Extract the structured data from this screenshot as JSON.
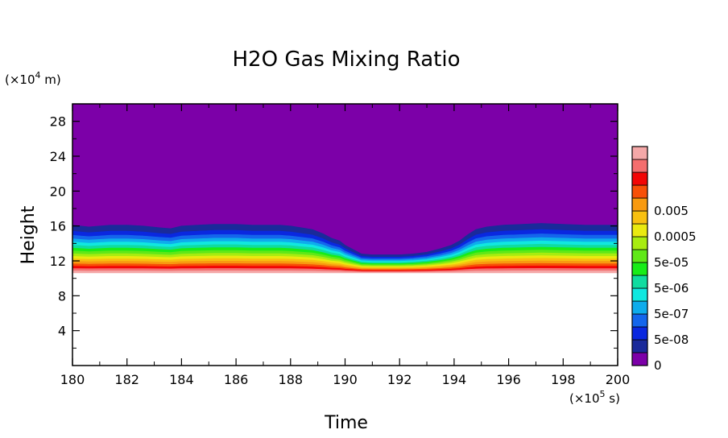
{
  "chart_data": {
    "type": "heatmap",
    "title": "H2O Gas Mixing Ratio",
    "xlabel": "Time",
    "ylabel": "Height",
    "x_unit_prefix": "(×10",
    "x_unit_exp": "5",
    "x_unit_suffix": " s)",
    "y_unit_prefix": "(×10",
    "y_unit_exp": "4",
    "y_unit_suffix": " m)",
    "xlim": [
      180,
      200
    ],
    "ylim": [
      0,
      30
    ],
    "xticks": [
      180,
      182,
      184,
      186,
      188,
      190,
      192,
      194,
      196,
      198,
      200
    ],
    "yticks": [
      4,
      8,
      12,
      16,
      20,
      24,
      28
    ],
    "grid": false,
    "legend": "right",
    "colorbar": {
      "colors": [
        "#7c00a8",
        "#1a2a9a",
        "#0a28e0",
        "#1466ec",
        "#0eacec",
        "#10e8e0",
        "#10dca0",
        "#18ec18",
        "#60e818",
        "#a8ec10",
        "#eaea10",
        "#f8c010",
        "#f89a10",
        "#f85008",
        "#f20606",
        "#f46e6e",
        "#f4a8a8"
      ],
      "labels": [
        "0",
        "5e-08",
        "5e-07",
        "5e-06",
        "5e-05",
        "0.0005",
        "0.005"
      ],
      "label_levels": [
        0,
        2,
        4,
        6,
        8,
        10,
        12
      ]
    },
    "profile_x": [
      180,
      180.3,
      180.6,
      181,
      181.4,
      182,
      182.6,
      183.2,
      183.6,
      184,
      184.6,
      185.2,
      186,
      186.6,
      187.2,
      187.6,
      188,
      188.4,
      188.8,
      189.2,
      189.5,
      189.8,
      190,
      190.3,
      190.6,
      191,
      191.5,
      192,
      192.5,
      193,
      193.5,
      193.9,
      194.2,
      194.5,
      194.8,
      195.2,
      195.8,
      196.5,
      197.2,
      198,
      198.8,
      199.5,
      200
    ],
    "profile_top": [
      16.1,
      16.0,
      15.9,
      16.0,
      16.1,
      16.1,
      16.0,
      15.8,
      15.7,
      16.0,
      16.1,
      16.2,
      16.2,
      16.1,
      16.1,
      16.1,
      16.0,
      15.8,
      15.6,
      15.1,
      14.6,
      14.3,
      13.8,
      13.3,
      12.8,
      12.7,
      12.7,
      12.7,
      12.8,
      13.0,
      13.4,
      13.8,
      14.3,
      15.0,
      15.6,
      15.9,
      16.1,
      16.2,
      16.3,
      16.2,
      16.1,
      16.1,
      16.1
    ],
    "profile_bottom": [
      10.6,
      10.6,
      10.6,
      10.6,
      10.6,
      10.6,
      10.6,
      10.6,
      10.6,
      10.6,
      10.6,
      10.6,
      10.6,
      10.6,
      10.6,
      10.6,
      10.6,
      10.6,
      10.6,
      10.6,
      10.6,
      10.6,
      10.6,
      10.6,
      10.6,
      10.6,
      10.6,
      10.6,
      10.6,
      10.6,
      10.6,
      10.6,
      10.6,
      10.6,
      10.6,
      10.6,
      10.6,
      10.6,
      10.6,
      10.6,
      10.6,
      10.6,
      10.6
    ]
  }
}
